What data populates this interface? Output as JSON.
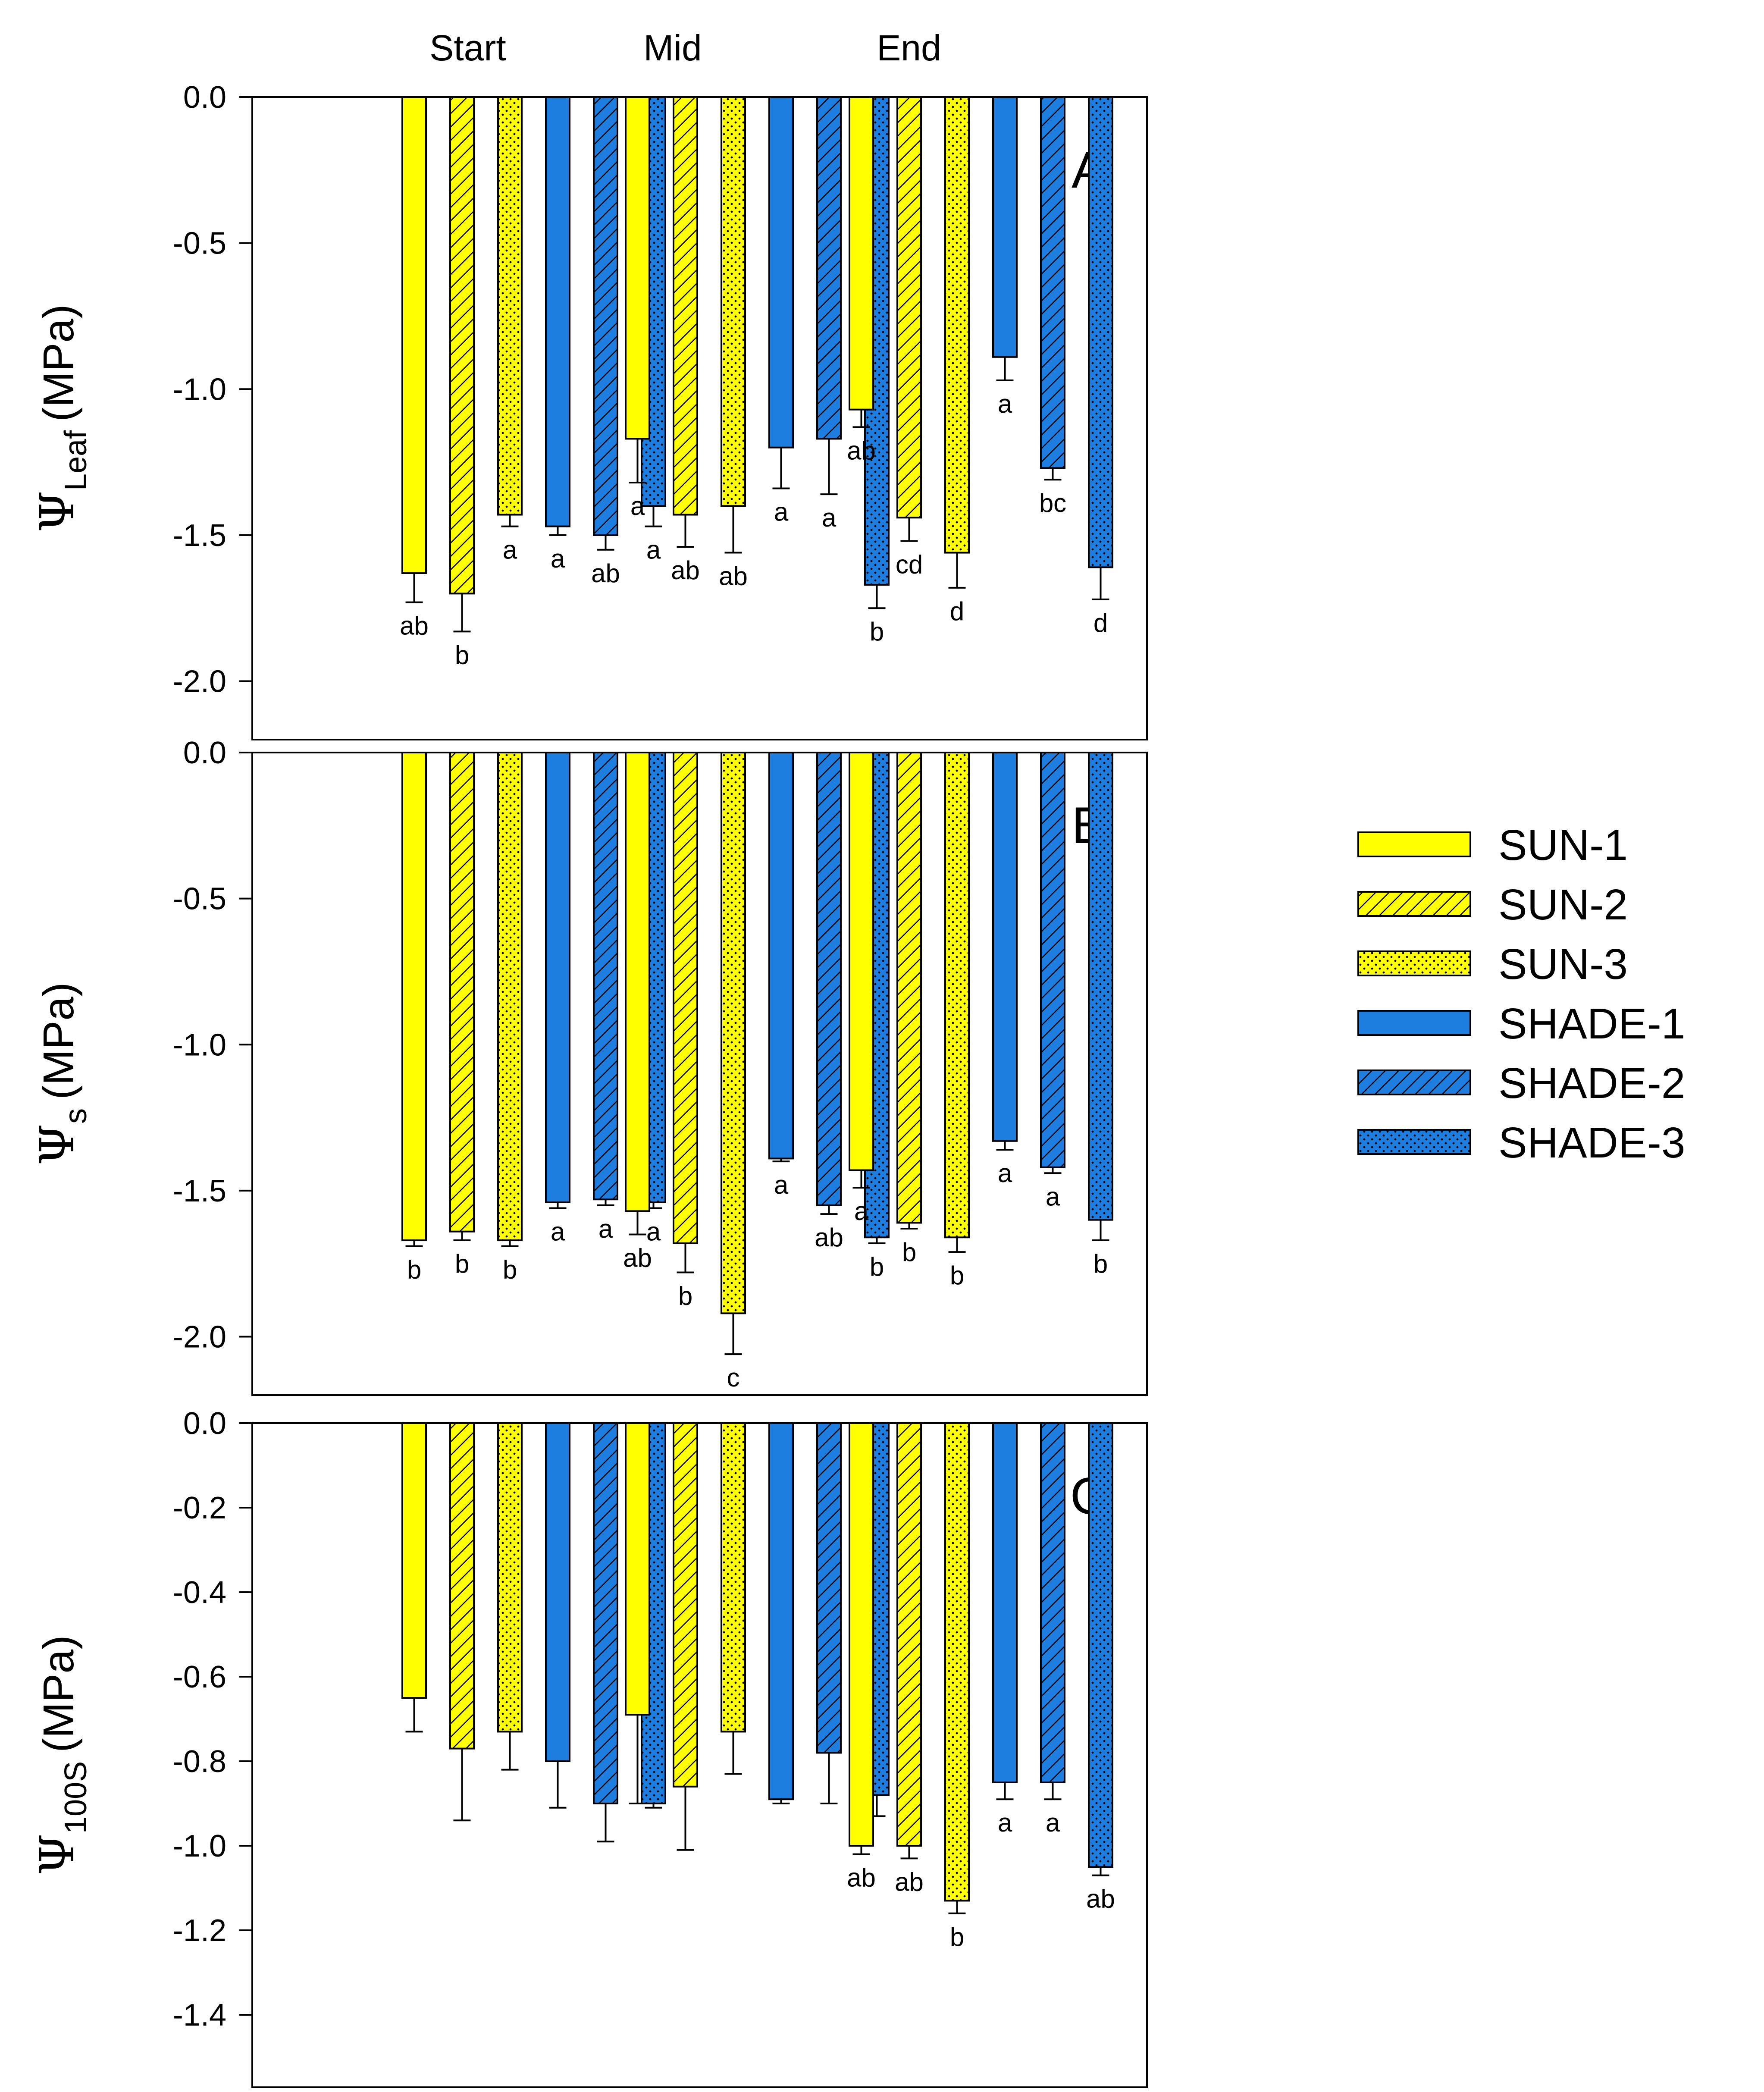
{
  "colors": {
    "sun": "#ffff00",
    "shade": "#1e7ee0",
    "outline": "#000000",
    "background": "#ffffff"
  },
  "chart_data": {
    "type": "bar",
    "categories": [
      "Start",
      "Mid",
      "End"
    ],
    "legend": {
      "position": "right",
      "entries": [
        {
          "name": "SUN-1",
          "group": "sun",
          "pattern": "solid"
        },
        {
          "name": "SUN-2",
          "group": "sun",
          "pattern": "hatch"
        },
        {
          "name": "SUN-3",
          "group": "sun",
          "pattern": "dots"
        },
        {
          "name": "SHADE-1",
          "group": "shade",
          "pattern": "solid"
        },
        {
          "name": "SHADE-2",
          "group": "shade",
          "pattern": "hatch"
        },
        {
          "name": "SHADE-3",
          "group": "shade",
          "pattern": "dots"
        }
      ]
    },
    "panels": [
      {
        "letter": "A",
        "ylabel": {
          "symbol": "Ψ",
          "subscript": "Leaf",
          "unit": "(MPa)"
        },
        "ylim": [
          -2.2,
          0
        ],
        "ticks": [
          0,
          -0.5,
          -1,
          -1.5,
          -2
        ],
        "tick_labels": [
          "0.0",
          "-0.5",
          "-1.0",
          "-1.5",
          "-2.0"
        ],
        "values": [
          [
            -1.63,
            -1.7,
            -1.43,
            -1.47,
            -1.5,
            -1.4
          ],
          [
            -1.17,
            -1.43,
            -1.4,
            -1.2,
            -1.17,
            -1.67
          ],
          [
            -1.07,
            -1.44,
            -1.56,
            -0.89,
            -1.27,
            -1.61
          ]
        ],
        "errors": [
          [
            0.1,
            0.13,
            0.04,
            0.03,
            0.05,
            0.07
          ],
          [
            0.15,
            0.11,
            0.16,
            0.14,
            0.19,
            0.08
          ],
          [
            0.06,
            0.08,
            0.12,
            0.08,
            0.04,
            0.11
          ]
        ],
        "letters": [
          [
            "ab",
            "b",
            "a",
            "a",
            "ab",
            "a"
          ],
          [
            "a",
            "ab",
            "ab",
            "a",
            "a",
            "b"
          ],
          [
            "ab",
            "cd",
            "d",
            "a",
            "bc",
            "d"
          ]
        ]
      },
      {
        "letter": "B",
        "ylabel": {
          "symbol": "Ψ",
          "subscript": "s",
          "unit": "(MPa)"
        },
        "ylim": [
          -2.2,
          0
        ],
        "ticks": [
          0,
          -0.5,
          -1,
          -1.5,
          -2
        ],
        "tick_labels": [
          "0.0",
          "-0.5",
          "-1.0",
          "-1.5",
          "-2.0"
        ],
        "values": [
          [
            -1.67,
            -1.64,
            -1.67,
            -1.54,
            -1.53,
            -1.54
          ],
          [
            -1.57,
            -1.68,
            -1.92,
            -1.39,
            -1.55,
            -1.66
          ],
          [
            -1.43,
            -1.61,
            -1.66,
            -1.33,
            -1.42,
            -1.6
          ]
        ],
        "errors": [
          [
            0.02,
            0.03,
            0.02,
            0.02,
            0.02,
            0.02
          ],
          [
            0.08,
            0.1,
            0.14,
            0.01,
            0.03,
            0.02
          ],
          [
            0.06,
            0.02,
            0.05,
            0.03,
            0.02,
            0.07
          ]
        ],
        "letters": [
          [
            "b",
            "b",
            "b",
            "a",
            "a",
            "a"
          ],
          [
            "ab",
            "b",
            "c",
            "a",
            "ab",
            "b"
          ],
          [
            "a",
            "b",
            "b",
            "a",
            "a",
            "b"
          ]
        ]
      },
      {
        "letter": "C",
        "ylabel": {
          "symbol": "Ψ",
          "subscript": "100S",
          "unit": "(MPa)"
        },
        "ylim": [
          -1.5,
          0
        ],
        "ticks": [
          0,
          -0.2,
          -0.4,
          -0.6,
          -0.8,
          -1,
          -1.2,
          -1.4
        ],
        "tick_labels": [
          "0.0",
          "-0.2",
          "-0.4",
          "-0.6",
          "-0.8",
          "-1.0",
          "-1.2",
          "-1.4"
        ],
        "values": [
          [
            -0.65,
            -0.77,
            -0.73,
            -0.8,
            -0.9,
            -0.9
          ],
          [
            -0.69,
            -0.86,
            -0.73,
            -0.89,
            -0.78,
            -0.88
          ],
          [
            -1.0,
            -1.0,
            -1.13,
            -0.85,
            -0.85,
            -1.05
          ]
        ],
        "errors": [
          [
            0.08,
            0.17,
            0.09,
            0.11,
            0.09,
            0.01
          ],
          [
            0.21,
            0.15,
            0.1,
            0.01,
            0.12,
            0.05
          ],
          [
            0.02,
            0.03,
            0.03,
            0.04,
            0.04,
            0.02
          ]
        ],
        "letters": [
          [
            "",
            "",
            "",
            "",
            "",
            ""
          ],
          [
            "",
            "",
            "",
            "",
            "",
            ""
          ],
          [
            "ab",
            "ab",
            "b",
            "a",
            "a",
            "ab"
          ]
        ]
      }
    ]
  }
}
